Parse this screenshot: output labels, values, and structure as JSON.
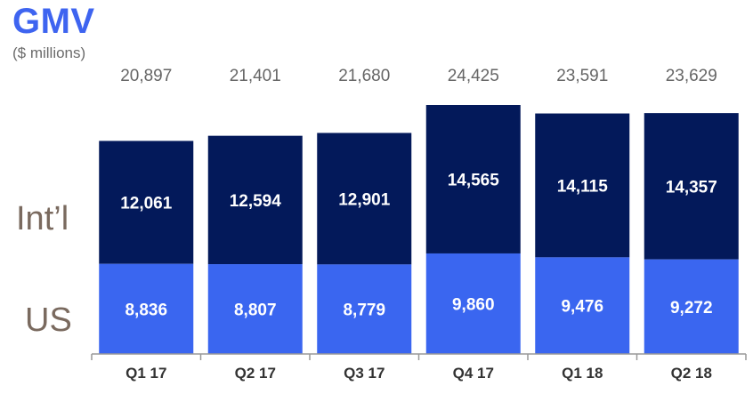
{
  "header": {
    "title": "GMV",
    "subtitle": "($ millions)"
  },
  "colors": {
    "title": "#3e64f0",
    "us": "#3a66f0",
    "intl": "#03195a",
    "axis": "#999999"
  },
  "chart_data": {
    "type": "bar",
    "stacked": true,
    "title": "GMV",
    "ylabel": "($ millions)",
    "xlabel": "",
    "categories": [
      "Q1 17",
      "Q2 17",
      "Q3 17",
      "Q4 17",
      "Q1 18",
      "Q2 18"
    ],
    "series": [
      {
        "name": "US",
        "values": [
          8836,
          8807,
          8779,
          9860,
          9476,
          9272
        ]
      },
      {
        "name": "Int’l",
        "values": [
          12061,
          12594,
          12901,
          14565,
          14115,
          14357
        ]
      }
    ],
    "totals": [
      20897,
      21401,
      21680,
      24425,
      23591,
      23629
    ],
    "value_labels": {
      "us": [
        "8,836",
        "8,807",
        "8,779",
        "9,860",
        "9,476",
        "9,272"
      ],
      "intl": [
        "12,061",
        "12,594",
        "12,901",
        "14,565",
        "14,115",
        "14,357"
      ],
      "totals": [
        "20,897",
        "21,401",
        "21,680",
        "24,425",
        "23,591",
        "23,629"
      ]
    },
    "ylim": [
      0,
      24425
    ],
    "grid": false,
    "legend": "left-side labels"
  }
}
